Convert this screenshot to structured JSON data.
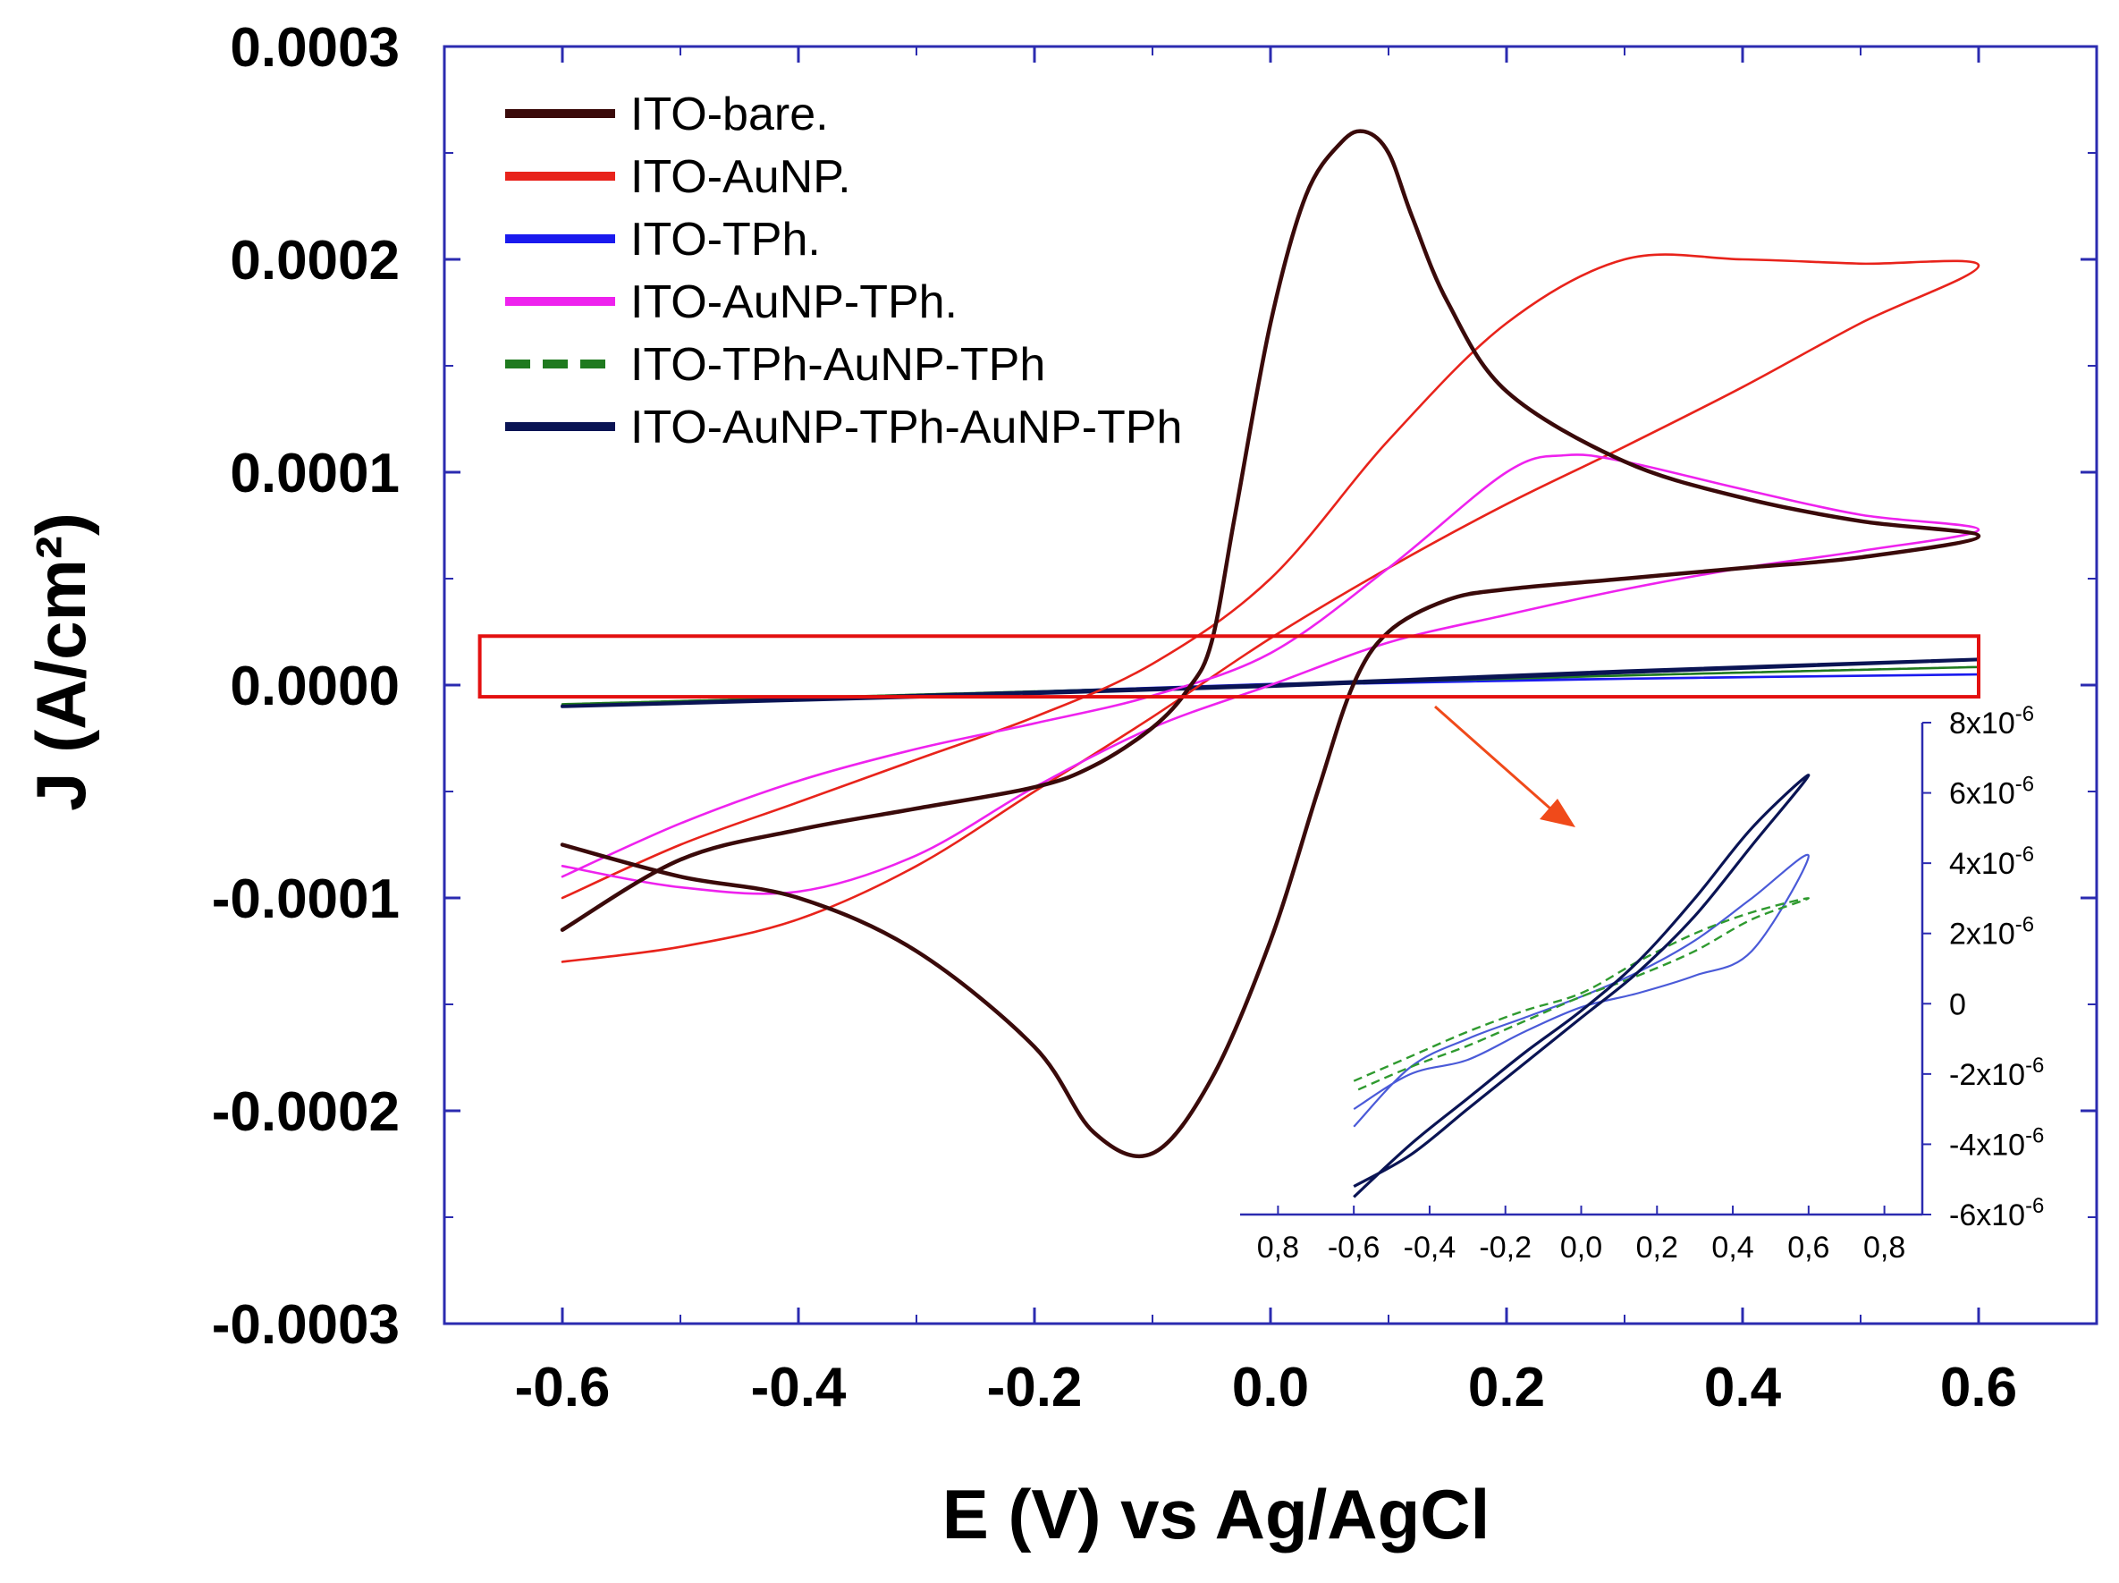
{
  "chart_data": [
    {
      "type": "line",
      "xlabel": "E (V) vs Ag/AgCl",
      "ylabel": "J (A/cm²)",
      "xlim": [
        -0.7,
        0.7
      ],
      "ylim": [
        -0.0003,
        0.0003
      ],
      "x_ticks": [
        "-0.6",
        "-0.4",
        "-0.2",
        "0.0",
        "0.2",
        "0.4",
        "0.6"
      ],
      "y_ticks": [
        "0.0003",
        "0.0002",
        "0.0001",
        "0.0000",
        "-0.0001",
        "-0.0002",
        "-0.0003"
      ],
      "legend_position": "top-left",
      "grid": false,
      "series": [
        {
          "name": "ITO-bare.",
          "color": "#3a0a0a",
          "style": "solid",
          "x": [
            -0.6,
            -0.5,
            -0.4,
            -0.3,
            -0.2,
            -0.15,
            -0.1,
            -0.07,
            -0.05,
            -0.03,
            0.0,
            0.03,
            0.06,
            0.08,
            0.1,
            0.12,
            0.15,
            0.2,
            0.3,
            0.4,
            0.5,
            0.6,
            0.5,
            0.4,
            0.3,
            0.2,
            0.15,
            0.1,
            0.07,
            0.04,
            0.0,
            -0.05,
            -0.1,
            -0.15,
            -0.2,
            -0.3,
            -0.4,
            -0.5,
            -0.6
          ],
          "y": [
            -0.000115,
            -8.2e-05,
            -6.8e-05,
            -5.8e-05,
            -4.8e-05,
            -3.8e-05,
            -2e-05,
            -2e-06,
            2e-05,
            8e-05,
            0.00017,
            0.00023,
            0.000255,
            0.00026,
            0.00025,
            0.00022,
            0.00018,
            0.000138,
            0.000105,
            8.8e-05,
            7.7e-05,
            7e-05,
            6e-05,
            5.5e-05,
            5e-05,
            4.5e-05,
            4e-05,
            2.5e-05,
            0.0,
            -5e-05,
            -0.00012,
            -0.000185,
            -0.00022,
            -0.00021,
            -0.00017,
            -0.000125,
            -0.0001,
            -9e-05,
            -7.5e-05
          ]
        },
        {
          "name": "ITO-AuNP.",
          "color": "#e8231b",
          "style": "solid",
          "x": [
            -0.6,
            -0.5,
            -0.4,
            -0.3,
            -0.2,
            -0.1,
            0.0,
            0.1,
            0.2,
            0.3,
            0.4,
            0.5,
            0.6,
            0.5,
            0.4,
            0.3,
            0.2,
            0.1,
            0.0,
            -0.1,
            -0.2,
            -0.3,
            -0.4,
            -0.5,
            -0.6
          ],
          "y": [
            -0.0001,
            -7.5e-05,
            -5.5e-05,
            -3.5e-05,
            -1.5e-05,
            1e-05,
            5e-05,
            0.000115,
            0.00017,
            0.0002,
            0.0002,
            0.000198,
            0.000197,
            0.00017,
            0.00014,
            0.000112,
            8.5e-05,
            5.5e-05,
            2.2e-05,
            -1.5e-05,
            -5e-05,
            -8.5e-05,
            -0.00011,
            -0.000123,
            -0.00013
          ]
        },
        {
          "name": "ITO-TPh.",
          "color": "#1a1aee",
          "style": "solid",
          "x": [
            -0.6,
            -0.3,
            0.0,
            0.3,
            0.6,
            0.3,
            0.0,
            -0.3,
            -0.6
          ],
          "y": [
            -9.5e-06,
            -5e-06,
            0.0,
            3e-06,
            5e-06,
            3e-06,
            5e-07,
            -5e-06,
            -9.5e-06
          ]
        },
        {
          "name": "ITO-AuNP-TPh.",
          "color": "#ee22ee",
          "style": "solid",
          "x": [
            -0.6,
            -0.5,
            -0.4,
            -0.3,
            -0.2,
            -0.1,
            0.0,
            0.1,
            0.2,
            0.25,
            0.3,
            0.4,
            0.5,
            0.6,
            0.5,
            0.4,
            0.3,
            0.2,
            0.1,
            0.0,
            -0.1,
            -0.2,
            -0.3,
            -0.4,
            -0.5,
            -0.6
          ],
          "y": [
            -9e-05,
            -6.5e-05,
            -4.5e-05,
            -3e-05,
            -1.8e-05,
            -5e-06,
            1.5e-05,
            5.5e-05,
            0.0001,
            0.000108,
            0.000105,
            9.2e-05,
            8e-05,
            7.3e-05,
            6.3e-05,
            5.5e-05,
            4.5e-05,
            3.3e-05,
            2e-05,
            0.0,
            -2e-05,
            -4.8e-05,
            -8e-05,
            -9.7e-05,
            -9.5e-05,
            -8.5e-05
          ]
        },
        {
          "name": "ITO-TPh-AuNP-TPh",
          "color": "#1f7a1f",
          "style": "dashed",
          "x": [
            -0.6,
            -0.3,
            0.0,
            0.3,
            0.6,
            0.3,
            0.0,
            -0.3,
            -0.6
          ],
          "y": [
            -9e-06,
            -4.5e-06,
            0.0,
            4.5e-06,
            8.5e-06,
            4.5e-06,
            0.0,
            -4.5e-06,
            -9e-06
          ]
        },
        {
          "name": "ITO-AuNP-TPh-AuNP-TPh",
          "color": "#0a1454",
          "style": "solid",
          "x": [
            -0.6,
            -0.3,
            0.0,
            0.3,
            0.6,
            0.3,
            0.0,
            -0.3,
            -0.6
          ],
          "y": [
            -1e-05,
            -5e-06,
            0.0,
            6.5e-06,
            1.2e-05,
            6e-06,
            -5e-07,
            -5.5e-06,
            -1e-05
          ]
        }
      ],
      "highlight_box": {
        "x0": -0.67,
        "x1": 0.6,
        "y0": -5.5e-06,
        "y1": 2.3e-05,
        "color": "#e31010"
      },
      "arrow_color": "#f04a1a"
    },
    {
      "type": "line",
      "inset": true,
      "xlim": [
        -0.9,
        0.9
      ],
      "ylim": [
        -6e-06,
        8e-06
      ],
      "x_ticks": [
        "0,8",
        "-0,6",
        "-0,4",
        "-0,2",
        "0,0",
        "0,2",
        "0,4",
        "0,6",
        "0,8"
      ],
      "y_ticks": [
        {
          "base": "8x10",
          "exp": "-6"
        },
        {
          "base": "6x10",
          "exp": "-6"
        },
        {
          "base": "4x10",
          "exp": "-6"
        },
        {
          "base": "2x10",
          "exp": "-6"
        },
        {
          "base": "0",
          "exp": ""
        },
        {
          "base": "-2x10",
          "exp": "-6"
        },
        {
          "base": "-4x10",
          "exp": "-6"
        },
        {
          "base": "-6x10",
          "exp": "-6"
        }
      ],
      "series": [
        {
          "name": "ITO-TPh.",
          "color": "#4a5ad8",
          "style": "solid",
          "x": [
            -0.6,
            -0.45,
            -0.3,
            -0.15,
            0.0,
            0.15,
            0.3,
            0.45,
            0.6,
            0.45,
            0.3,
            0.15,
            0.0,
            -0.15,
            -0.3,
            -0.45,
            -0.6
          ],
          "y": [
            -3.5e-06,
            -1.8e-06,
            -1e-06,
            -4e-07,
            2e-07,
            9e-07,
            1.8e-06,
            3e-06,
            4.2e-06,
            1.5e-06,
            8e-07,
            3e-07,
            -1e-07,
            -8e-07,
            -1.6e-06,
            -2e-06,
            -3e-06
          ]
        },
        {
          "name": "ITO-TPh-AuNP-TPh",
          "color": "#2f9a2f",
          "style": "dashed",
          "x": [
            -0.6,
            -0.45,
            -0.3,
            -0.15,
            0.0,
            0.15,
            0.3,
            0.45,
            0.6,
            0.45,
            0.3,
            0.15,
            0.0,
            -0.15,
            -0.3,
            -0.45,
            -0.6
          ],
          "y": [
            -2.2e-06,
            -1.5e-06,
            -8e-07,
            -2e-07,
            3e-07,
            1.2e-06,
            2e-06,
            2.6e-06,
            3e-06,
            2.4e-06,
            1.5e-06,
            8e-07,
            2e-07,
            -5e-07,
            -1.2e-06,
            -1.8e-06,
            -2.5e-06
          ]
        },
        {
          "name": "ITO-AuNP-TPh-AuNP-TPh",
          "color": "#0a1454",
          "style": "solid",
          "x": [
            -0.6,
            -0.45,
            -0.3,
            -0.15,
            0.0,
            0.15,
            0.3,
            0.45,
            0.6,
            0.45,
            0.3,
            0.15,
            0.0,
            -0.15,
            -0.3,
            -0.45,
            -0.6
          ],
          "y": [
            -5.5e-06,
            -4e-06,
            -2.7e-06,
            -1.4e-06,
            -2e-07,
            1.2e-06,
            3e-06,
            5e-06,
            6.5e-06,
            4.5e-06,
            2.5e-06,
            9e-07,
            -4e-07,
            -1.7e-06,
            -3e-06,
            -4.3e-06,
            -5.2e-06
          ]
        }
      ]
    }
  ]
}
